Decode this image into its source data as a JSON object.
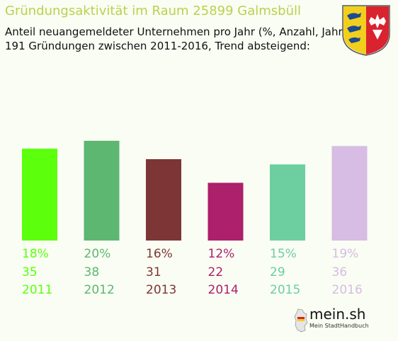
{
  "header": {
    "title": "Gründungsaktivität im Raum 25899 Galmsbüll",
    "subtitle_line1": "Anteil neuangemeldeter Unternehmen pro Jahr (%, Anzahl, Jahr)",
    "subtitle_line2": "191 Gründungen zwischen 2011-2016, Trend absteigend:"
  },
  "crest": {
    "icon": "schleswig-holstein-coat-of-arms-icon"
  },
  "branding": {
    "name": "mein.sh",
    "tagline": "Mein StadtHandbuch",
    "icon": "germany-map-icon"
  },
  "chart_data": {
    "type": "bar",
    "categories": [
      "2011",
      "2012",
      "2013",
      "2014",
      "2015",
      "2016"
    ],
    "percent_labels": [
      "18%",
      "20%",
      "16%",
      "12%",
      "15%",
      "19%"
    ],
    "values": [
      35,
      38,
      31,
      22,
      29,
      36
    ],
    "colors": [
      "#5cff0c",
      "#5db771",
      "#7e3535",
      "#ad206b",
      "#6dcea0",
      "#d7bce3"
    ],
    "title": "",
    "xlabel": "",
    "ylabel": "",
    "ylim": [
      0,
      38
    ],
    "grid": false,
    "legend": "none"
  }
}
